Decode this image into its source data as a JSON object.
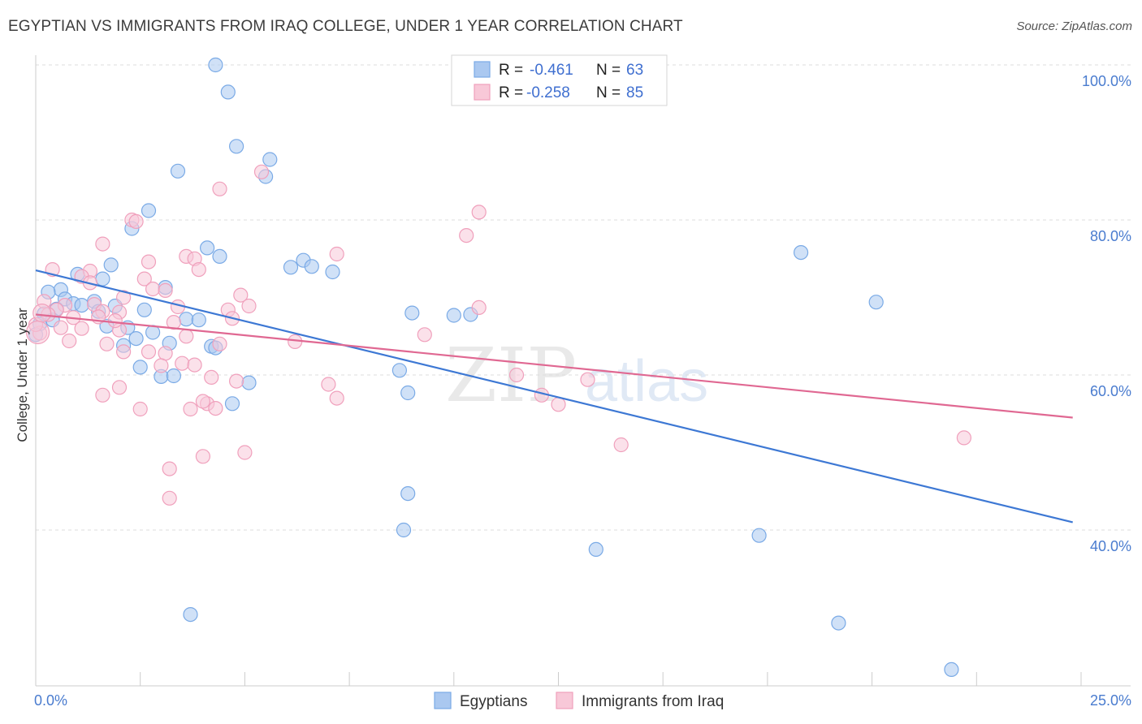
{
  "title": "EGYPTIAN VS IMMIGRANTS FROM IRAQ COLLEGE, UNDER 1 YEAR CORRELATION CHART",
  "source": "Source: ZipAtlas.com",
  "watermark": {
    "zip": "ZIP",
    "atlas": "atlas"
  },
  "chart_data": {
    "type": "scatter",
    "title": "EGYPTIAN VS IMMIGRANTS FROM IRAQ COLLEGE, UNDER 1 YEAR CORRELATION CHART",
    "xlabel": "",
    "ylabel": "College, Under 1 year",
    "xlim": [
      0,
      25
    ],
    "ylim": [
      20,
      102
    ],
    "x_tick_labels": [
      "0.0%",
      "25.0%"
    ],
    "y_ticks": [
      40,
      60,
      80,
      100
    ],
    "y_tick_labels": [
      "40.0%",
      "60.0%",
      "80.0%",
      "100.0%"
    ],
    "grid": true,
    "legend_position": "top-center",
    "series": [
      {
        "name": "Egyptians",
        "color": "#7aaae6",
        "fill": "#aac8f0",
        "line_color": "#3d78d4",
        "R": "-0.461",
        "N": "63",
        "trend": {
          "x": [
            0,
            24.8
          ],
          "y": [
            73.5,
            41.0
          ]
        },
        "points": [
          [
            4.3,
            100.0
          ],
          [
            4.6,
            96.5
          ],
          [
            4.8,
            89.5
          ],
          [
            5.6,
            87.8
          ],
          [
            5.5,
            85.6
          ],
          [
            3.4,
            86.3
          ],
          [
            2.7,
            81.2
          ],
          [
            2.3,
            78.9
          ],
          [
            4.1,
            76.4
          ],
          [
            4.4,
            75.3
          ],
          [
            6.4,
            74.8
          ],
          [
            6.6,
            74.0
          ],
          [
            6.1,
            73.9
          ],
          [
            7.1,
            73.3
          ],
          [
            1.8,
            74.2
          ],
          [
            1.0,
            73.0
          ],
          [
            1.6,
            72.4
          ],
          [
            0.6,
            71.0
          ],
          [
            0.3,
            70.7
          ],
          [
            3.1,
            71.3
          ],
          [
            0.7,
            69.8
          ],
          [
            1.4,
            69.5
          ],
          [
            0.9,
            69.2
          ],
          [
            1.1,
            69.0
          ],
          [
            1.9,
            68.9
          ],
          [
            2.6,
            68.4
          ],
          [
            1.5,
            68.2
          ],
          [
            0.5,
            68.5
          ],
          [
            0.2,
            67.9
          ],
          [
            0.4,
            67.1
          ],
          [
            3.6,
            67.2
          ],
          [
            3.9,
            67.1
          ],
          [
            0.1,
            66.6
          ],
          [
            1.7,
            66.3
          ],
          [
            2.2,
            66.1
          ],
          [
            2.8,
            65.5
          ],
          [
            2.4,
            64.7
          ],
          [
            3.2,
            64.1
          ],
          [
            4.2,
            63.7
          ],
          [
            4.3,
            63.5
          ],
          [
            2.1,
            63.8
          ],
          [
            2.5,
            61.0
          ],
          [
            3.0,
            59.8
          ],
          [
            3.3,
            59.9
          ],
          [
            5.1,
            59.0
          ],
          [
            4.7,
            56.3
          ],
          [
            8.7,
            60.6
          ],
          [
            8.9,
            57.7
          ],
          [
            9.0,
            68.0
          ],
          [
            10.0,
            67.7
          ],
          [
            10.4,
            67.8
          ],
          [
            18.3,
            75.8
          ],
          [
            20.1,
            69.4
          ],
          [
            0.0,
            65.2
          ],
          [
            8.9,
            44.7
          ],
          [
            8.8,
            40.0
          ],
          [
            13.4,
            37.5
          ],
          [
            17.3,
            39.3
          ],
          [
            3.7,
            29.1
          ],
          [
            19.2,
            28.0
          ],
          [
            21.9,
            22.0
          ]
        ]
      },
      {
        "name": "Immigrants from Iraq",
        "color": "#f0a0bc",
        "fill": "#f8c8d8",
        "line_color": "#e06892",
        "R": "-0.258",
        "N": "85",
        "trend": {
          "x": [
            0,
            24.8
          ],
          "y": [
            67.8,
            54.5
          ]
        },
        "points": [
          [
            5.4,
            86.2
          ],
          [
            4.4,
            84.0
          ],
          [
            10.6,
            81.0
          ],
          [
            2.3,
            80.0
          ],
          [
            2.4,
            79.8
          ],
          [
            10.3,
            78.0
          ],
          [
            1.6,
            76.9
          ],
          [
            7.2,
            75.6
          ],
          [
            3.6,
            75.3
          ],
          [
            3.8,
            75.0
          ],
          [
            2.7,
            74.6
          ],
          [
            3.9,
            73.6
          ],
          [
            0.4,
            73.6
          ],
          [
            1.3,
            73.4
          ],
          [
            1.1,
            72.7
          ],
          [
            2.6,
            72.4
          ],
          [
            1.3,
            71.9
          ],
          [
            2.8,
            71.1
          ],
          [
            3.1,
            70.9
          ],
          [
            4.9,
            70.3
          ],
          [
            2.1,
            70.0
          ],
          [
            0.2,
            69.5
          ],
          [
            0.7,
            69.0
          ],
          [
            1.4,
            69.1
          ],
          [
            3.4,
            68.8
          ],
          [
            5.1,
            68.9
          ],
          [
            10.6,
            68.7
          ],
          [
            0.5,
            68.4
          ],
          [
            1.6,
            68.2
          ],
          [
            2.0,
            68.1
          ],
          [
            0.3,
            67.8
          ],
          [
            4.6,
            68.4
          ],
          [
            1.5,
            67.5
          ],
          [
            0.9,
            67.4
          ],
          [
            3.3,
            66.8
          ],
          [
            4.7,
            67.3
          ],
          [
            0.6,
            66.1
          ],
          [
            1.1,
            66.0
          ],
          [
            2.0,
            65.8
          ],
          [
            0.1,
            65.4
          ],
          [
            3.6,
            65.0
          ],
          [
            9.3,
            65.2
          ],
          [
            0.8,
            64.4
          ],
          [
            1.7,
            64.0
          ],
          [
            4.4,
            64.0
          ],
          [
            6.2,
            64.3
          ],
          [
            2.1,
            63.0
          ],
          [
            2.7,
            63.0
          ],
          [
            3.1,
            62.8
          ],
          [
            3.5,
            61.5
          ],
          [
            3.0,
            61.2
          ],
          [
            3.8,
            61.3
          ],
          [
            11.5,
            60.0
          ],
          [
            4.2,
            59.7
          ],
          [
            4.8,
            59.2
          ],
          [
            13.2,
            59.4
          ],
          [
            7.0,
            58.8
          ],
          [
            12.1,
            57.4
          ],
          [
            1.6,
            57.4
          ],
          [
            2.0,
            58.4
          ],
          [
            7.2,
            57.0
          ],
          [
            4.1,
            56.3
          ],
          [
            12.5,
            56.2
          ],
          [
            4.3,
            55.7
          ],
          [
            2.5,
            55.6
          ],
          [
            3.7,
            55.6
          ],
          [
            4.0,
            56.6
          ],
          [
            14.0,
            51.0
          ],
          [
            22.2,
            51.9
          ],
          [
            5.0,
            50.0
          ],
          [
            4.0,
            49.5
          ],
          [
            3.2,
            47.9
          ],
          [
            3.2,
            44.1
          ],
          [
            0.0,
            66.5
          ],
          [
            1.9,
            67.0
          ]
        ]
      }
    ]
  },
  "legend": {
    "r_label": "R =",
    "n_label": "N =",
    "rows": [
      {
        "r": "-0.461",
        "n": "63"
      },
      {
        "r": "-0.258",
        "n": "85"
      }
    ]
  },
  "bottom_legend": [
    "Egyptians",
    "Immigrants from Iraq"
  ]
}
